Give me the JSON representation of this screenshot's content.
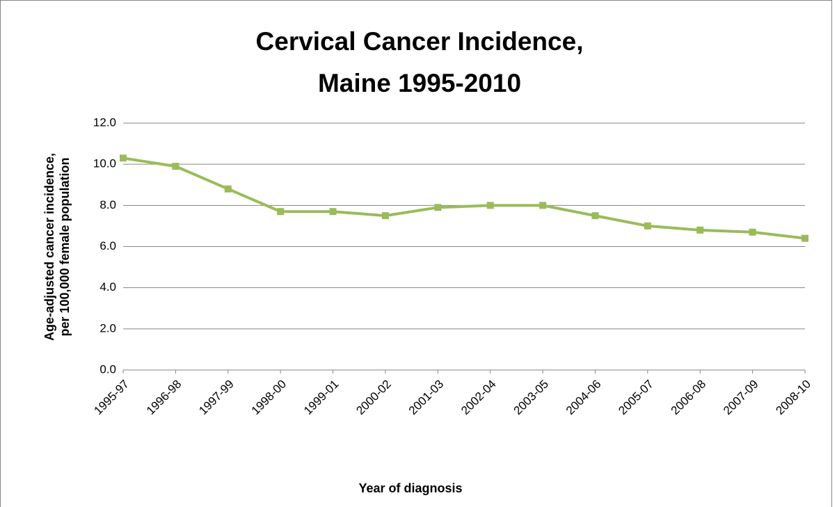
{
  "chart_data": {
    "type": "line",
    "title": [
      "Cervical Cancer Incidence,",
      "Maine 1995-2010"
    ],
    "y_label": [
      "Age-adjusted cancer incidence,",
      "per 100,000 female population"
    ],
    "x_label": "Year of diagnosis",
    "categories": [
      "1995-97",
      "1996-98",
      "1997-99",
      "1998-00",
      "1999-01",
      "2000-02",
      "2001-03",
      "2002-04",
      "2003-05",
      "2004-06",
      "2005-07",
      "2006-08",
      "2007-09",
      "2008-10"
    ],
    "series": [
      {
        "name": "Cervical cancer incidence",
        "color": "#9bbb59",
        "values": [
          10.3,
          9.9,
          8.8,
          7.7,
          7.7,
          7.5,
          7.9,
          8.0,
          8.0,
          7.5,
          7.0,
          6.8,
          6.7,
          6.4
        ]
      }
    ],
    "ylim": [
      0,
      12
    ],
    "yticks": [
      {
        "value": 0,
        "label": "0.0"
      },
      {
        "value": 2,
        "label": "2.0"
      },
      {
        "value": 4,
        "label": "4.0"
      },
      {
        "value": 6,
        "label": "6.0"
      },
      {
        "value": 8,
        "label": "8.0"
      },
      {
        "value": 10,
        "label": "10.0"
      },
      {
        "value": 12,
        "label": "12.0"
      }
    ],
    "grid": true
  }
}
